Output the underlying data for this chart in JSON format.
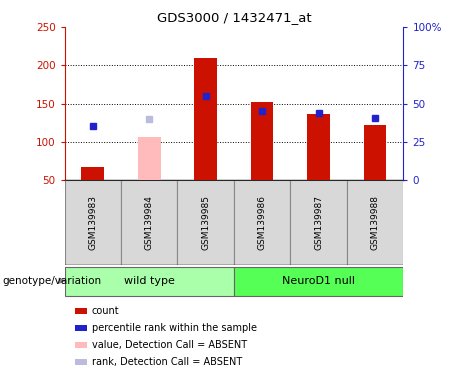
{
  "title": "GDS3000 / 1432471_at",
  "samples": [
    "GSM139983",
    "GSM139984",
    "GSM139985",
    "GSM139986",
    "GSM139987",
    "GSM139988"
  ],
  "groups": [
    "wild type",
    "wild type",
    "wild type",
    "NeuroD1 null",
    "NeuroD1 null",
    "NeuroD1 null"
  ],
  "count_values": [
    67,
    null,
    210,
    152,
    137,
    122
  ],
  "count_absent_values": [
    null,
    107,
    null,
    null,
    null,
    null
  ],
  "rank_values": [
    121,
    null,
    160,
    140,
    138,
    131
  ],
  "rank_absent_values": [
    null,
    130,
    null,
    null,
    null,
    null
  ],
  "ylim_left": [
    50,
    250
  ],
  "ylim_right": [
    0,
    100
  ],
  "yticks_left": [
    50,
    100,
    150,
    200,
    250
  ],
  "ytick_labels_right": [
    "0",
    "25",
    "50",
    "75",
    "100%"
  ],
  "ytick_vals_right": [
    0,
    25,
    50,
    75,
    100
  ],
  "color_count": "#cc1100",
  "color_rank": "#2222cc",
  "color_count_absent": "#ffbbbb",
  "color_rank_absent": "#bbbbdd",
  "group_color_wt": "#aaffaa",
  "group_color_nd": "#55ff55",
  "bar_width": 0.4,
  "background_color": "#ffffff",
  "legend_items": [
    {
      "label": "count",
      "color": "#cc1100"
    },
    {
      "label": "percentile rank within the sample",
      "color": "#2222cc"
    },
    {
      "label": "value, Detection Call = ABSENT",
      "color": "#ffbbbb"
    },
    {
      "label": "rank, Detection Call = ABSENT",
      "color": "#bbbbdd"
    }
  ],
  "genotype_label": "genotype/variation"
}
